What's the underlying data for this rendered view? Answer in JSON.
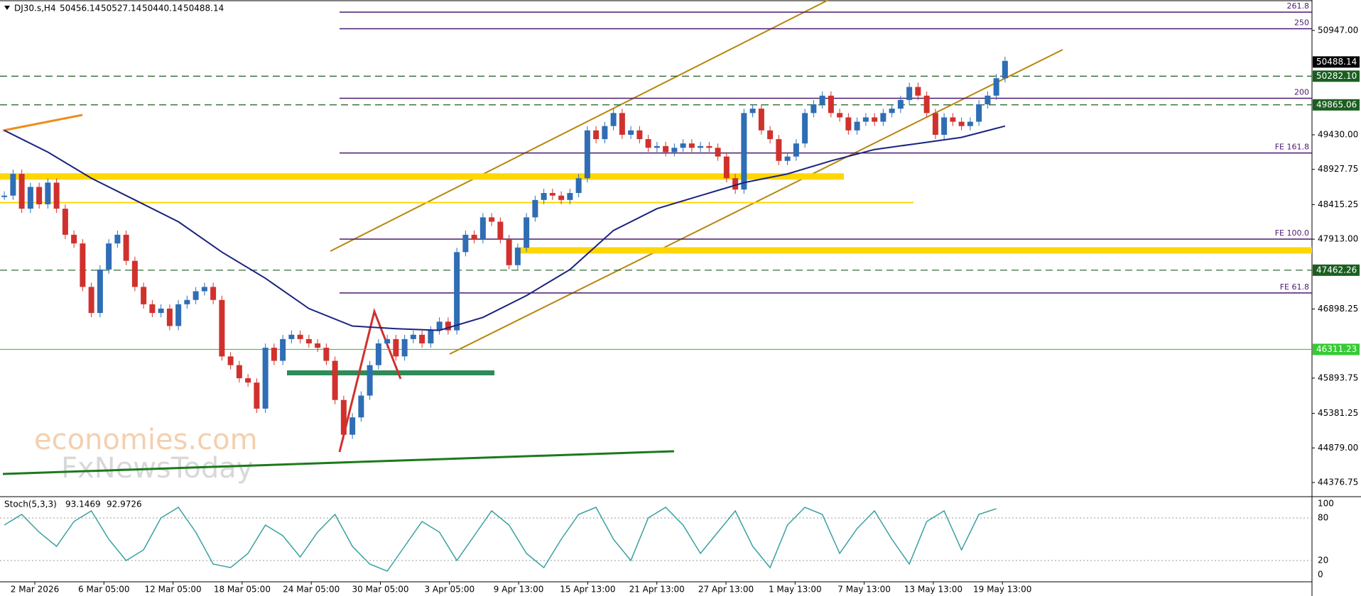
{
  "chart_data": {
    "type": "candlestick",
    "symbol": "DJ30.s,H4",
    "ohlc": [
      50456.14,
      50527.14,
      50440.14,
      50488.14
    ],
    "ylim": [
      44212,
      51389
    ],
    "yticks": [
      {
        "value": 50947,
        "label": "50947.00"
      },
      {
        "value": 49430,
        "label": "49430.00"
      },
      {
        "value": 48927.75,
        "label": "48927.75"
      },
      {
        "value": 48415.25,
        "label": "48415.25"
      },
      {
        "value": 47913,
        "label": "47913.00"
      },
      {
        "value": 46898.25,
        "label": "46898.25"
      },
      {
        "value": 45893.75,
        "label": "45893.75"
      },
      {
        "value": 45381.25,
        "label": "45381.25"
      },
      {
        "value": 44879,
        "label": "44879.00"
      },
      {
        "value": 44376.75,
        "label": "44376.75"
      }
    ],
    "time_labels": [
      "2 Mar 2026",
      "6 Mar 05:00",
      "12 Mar 05:00",
      "18 Mar 05:00",
      "24 Mar 05:00",
      "30 Mar 05:00",
      "3 Apr 05:00",
      "9 Apr 13:00",
      "15 Apr 13:00",
      "21 Apr 13:00",
      "27 Apr 13:00",
      "1 May 13:00",
      "7 May 13:00",
      "13 May 13:00",
      "19 May 13:00"
    ],
    "up_color": "#2f6db5",
    "down_color": "#d0312d",
    "values": [
      48546,
      48862,
      48356,
      48672,
      48420,
      48735,
      48356,
      47977,
      47851,
      47219,
      46840,
      47472,
      47851,
      47977,
      47598,
      47219,
      46967,
      46840,
      46904,
      46651,
      46967,
      47030,
      47156,
      47219,
      47030,
      46209,
      46082,
      45892,
      45829,
      45450,
      46335,
      46145,
      46461,
      46524,
      46461,
      46398,
      46335,
      46145,
      45576,
      45071,
      45323,
      45640,
      46082,
      46398,
      46461,
      46209,
      46461,
      46524,
      46398,
      46588,
      46714,
      46588,
      47725,
      47977,
      47914,
      48230,
      48167,
      47914,
      47535,
      47788,
      48230,
      48483,
      48584,
      48546,
      48483,
      48584,
      48799,
      49494,
      49367,
      49557,
      49746,
      49430,
      49494,
      49367,
      49241,
      49266,
      49178,
      49241,
      49304,
      49241,
      49266,
      49241,
      49114,
      48799,
      48634,
      49746,
      49810,
      49494,
      49367,
      49051,
      49114,
      49304,
      49746,
      49873,
      49999,
      49746,
      49683,
      49494,
      49620,
      49683,
      49620,
      49746,
      49810,
      49936,
      50125,
      49999,
      49746,
      49430,
      49683,
      49620,
      49557,
      49620,
      49873,
      49999,
      50252,
      50504
    ],
    "ma": {
      "color": "#1a237e",
      "values": [
        49494,
        49178,
        48799,
        48483,
        48167,
        47725,
        47345,
        46904,
        46651,
        46613,
        46588,
        46777,
        47093,
        47472,
        48040,
        48356,
        48546,
        48735,
        48862,
        49051,
        49216,
        49304,
        49393,
        49557
      ]
    },
    "levels": [
      {
        "label": "50488.14",
        "value": 50488.14,
        "kind": "current"
      },
      {
        "label": "50282.10",
        "value": 50282.1,
        "kind": "dashed"
      },
      {
        "label": "49865.06",
        "value": 49865.06,
        "kind": "dashed"
      },
      {
        "label": "47462.26",
        "value": 47462.26,
        "kind": "dashed"
      },
      {
        "label": "46311.23",
        "value": 46311.23,
        "kind": "solid"
      }
    ],
    "fib_levels": [
      {
        "label": "261.8",
        "value": 51212
      },
      {
        "label": "250",
        "value": 50972
      },
      {
        "label": "200",
        "value": 49961
      },
      {
        "label": "FE 161.8",
        "value": 49165
      },
      {
        "label": "FE 100.0",
        "value": 47914
      },
      {
        "label": "FE 61.8",
        "value": 47131
      }
    ],
    "zones": [
      48824,
      48445,
      47750
    ],
    "stoch": {
      "name": "Stoch(5,3,3)",
      "k": 93.1469,
      "d": 92.9726,
      "color": "#3aa0a0",
      "ylim": [
        0,
        100
      ],
      "yticks": [
        100,
        80,
        20,
        0
      ],
      "values": [
        70,
        85,
        60,
        40,
        75,
        90,
        50,
        20,
        35,
        80,
        95,
        60,
        15,
        10,
        30,
        70,
        55,
        25,
        60,
        85,
        40,
        15,
        5,
        40,
        75,
        60,
        20,
        55,
        90,
        70,
        30,
        10,
        50,
        85,
        95,
        50,
        20,
        80,
        95,
        70,
        30,
        60,
        90,
        40,
        10,
        70,
        95,
        85,
        30,
        65,
        90,
        50,
        15,
        75,
        90,
        35,
        85,
        93.1469
      ]
    },
    "watermark": [
      "economies.com",
      "FxNewsToday"
    ]
  }
}
